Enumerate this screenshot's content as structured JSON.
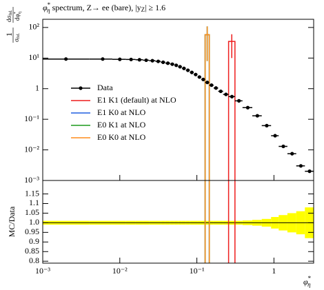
{
  "chart_data": {
    "type": "histogram",
    "title": [
      "φ",
      "*",
      "η",
      " spectrum, Z→ ee (bare), |y",
      "Z",
      "| ≥ 1.6"
    ],
    "ylabel": {
      "numerator": [
        "1"
      ],
      "denominator": [
        "σ",
        "fid."
      ],
      "numerator2": [
        "dσ",
        "fid."
      ],
      "denominator2": [
        "dφ",
        "*",
        "η"
      ]
    },
    "ratio_ylabel": "MC/Data",
    "xlabel": [
      "φ",
      "*",
      "η"
    ],
    "xscale": "log",
    "yscale": "log",
    "xlim": [
      0.001,
      3.277
    ],
    "ylim": [
      0.001,
      185
    ],
    "ratio_ylim": [
      0.79,
      1.22
    ],
    "xticks": [
      {
        "value": 0.001,
        "label": "10⁻³"
      },
      {
        "value": 0.01,
        "label": "10⁻²"
      },
      {
        "value": 0.1,
        "label": "10⁻¹"
      },
      1
    ],
    "yticks": [
      {
        "value": 0.001,
        "label": "10⁻³"
      },
      {
        "value": 0.01,
        "label": "10⁻²"
      },
      {
        "value": 0.1,
        "label": "10⁻¹"
      },
      1,
      {
        "value": 10,
        "label": "10¹"
      },
      {
        "value": 100,
        "label": "10²"
      }
    ],
    "ratio_yticks": [
      0.8,
      0.85,
      0.9,
      0.95,
      {
        "value": 1,
        "label": "1.0"
      },
      1.05,
      1.1,
      1.15
    ],
    "data": {
      "name": "Data",
      "color": "#000000",
      "bin_edges": [
        0,
        0.004,
        0.008,
        0.012,
        0.016,
        0.02,
        0.024,
        0.029,
        0.034,
        0.039,
        0.045,
        0.051,
        0.057,
        0.064,
        0.072,
        0.081,
        0.091,
        0.102,
        0.114,
        0.128,
        0.145,
        0.165,
        0.189,
        0.219,
        0.258,
        0.312,
        0.391,
        0.524,
        0.695,
        0.918,
        1.153,
        1.496,
        1.947,
        2.522,
        3.277
      ],
      "x": [
        0.002,
        0.006,
        0.01,
        0.014,
        0.018,
        0.022,
        0.0265,
        0.0315,
        0.0365,
        0.042,
        0.048,
        0.054,
        0.0605,
        0.068,
        0.0765,
        0.086,
        0.0965,
        0.108,
        0.121,
        0.1365,
        0.155,
        0.177,
        0.204,
        0.2385,
        0.285,
        0.3515,
        0.4575,
        0.6095,
        0.8065,
        1.0355,
        1.3245,
        1.7215,
        2.2345,
        2.8995
      ],
      "values": [
        9.3,
        9.3,
        9.1,
        9.0,
        8.8,
        8.5,
        8.2,
        7.8,
        7.3,
        6.8,
        6.3,
        5.8,
        5.2,
        4.6,
        4.0,
        3.4,
        2.9,
        2.4,
        2.0,
        1.6,
        1.3,
        1.05,
        0.82,
        0.65,
        0.55,
        0.4,
        0.24,
        0.13,
        0.062,
        0.029,
        0.013,
        0.0075,
        0.003,
        0.002
      ],
      "ratio_errors": [
        0.01,
        0.01,
        0.01,
        0.01,
        0.01,
        0.01,
        0.01,
        0.01,
        0.01,
        0.01,
        0.01,
        0.01,
        0.01,
        0.01,
        0.01,
        0.01,
        0.01,
        0.01,
        0.01,
        0.01,
        0.01,
        0.01,
        0.01,
        0.01,
        0.01,
        0.01,
        0.012,
        0.015,
        0.02,
        0.03,
        0.04,
        0.05,
        0.06,
        0.08
      ],
      "band_color": "#ffff00"
    },
    "series": [
      {
        "name": "E1 K1 (default) at NLO",
        "color": "#ee1c1c",
        "bin_edges": [
          0.258,
          0.312
        ],
        "values": [
          35
        ],
        "errors": [
          25
        ],
        "ratio_bin": 24
      },
      {
        "name": "E1 K0 at NLO",
        "color": "#1f5fe0",
        "bin_edges": [
          0.128,
          0.145
        ],
        "values": [
          58
        ],
        "errors": [
          50
        ],
        "ratio_bin": 19
      },
      {
        "name": "E0 K1 at NLO",
        "color": "#1c9a1c",
        "bin_edges": [
          0.128,
          0.145
        ],
        "values": [
          58
        ],
        "errors": [
          50
        ],
        "ratio_bin": 19
      },
      {
        "name": "E0 K0 at NLO",
        "color": "#ff8c1a",
        "bin_edges": [
          0.128,
          0.145
        ],
        "values": [
          58
        ],
        "errors": [
          50
        ],
        "ratio_bin": 19
      }
    ]
  }
}
